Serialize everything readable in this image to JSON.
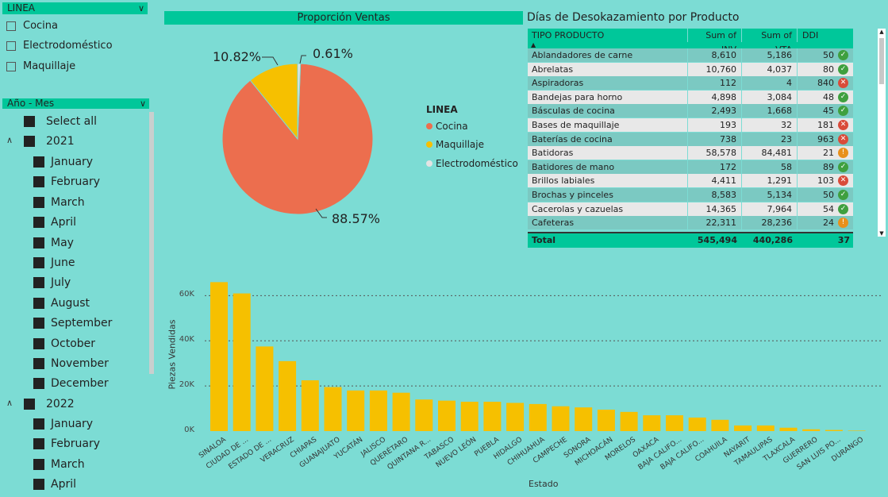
{
  "linea_slicer": {
    "title": "LINEA",
    "items": [
      "Cocina",
      "Electrodoméstico",
      "Maquillaje"
    ]
  },
  "date_slicer": {
    "title": "Año - Mes",
    "select_all": "Select all",
    "year_2021": "2021",
    "months_2021": [
      "January",
      "February",
      "March",
      "April",
      "May",
      "June",
      "July",
      "August",
      "September",
      "October",
      "November",
      "December"
    ],
    "year_2022": "2022",
    "months_2022": [
      "January",
      "February",
      "March",
      "April"
    ]
  },
  "pie": {
    "title": "Proporción Ventas",
    "label_cocina": "88.57%",
    "label_maquillaje": "10.82%",
    "label_electro": "0.61%",
    "legend_title": "LINEA",
    "legend": [
      "Cocina",
      "Maquillaje",
      "Electrodoméstico"
    ],
    "colors": {
      "cocina": "#ec6e4e",
      "maquillaje": "#f6c000",
      "electro": "#e3e3e3"
    },
    "values": [
      88.57,
      10.82,
      0.61
    ]
  },
  "table": {
    "title": "Días de Desokazamiento por Producto",
    "headers": [
      "TIPO PRODUCTO",
      "Sum of INV",
      "Sum of VTA",
      "DDI"
    ],
    "rows": [
      {
        "name": "Ablandadores de carne",
        "inv": "8,610",
        "vta": "5,186",
        "ddi": "50",
        "status": "ok"
      },
      {
        "name": "Abrelatas",
        "inv": "10,760",
        "vta": "4,037",
        "ddi": "80",
        "status": "ok"
      },
      {
        "name": "Aspiradoras",
        "inv": "112",
        "vta": "4",
        "ddi": "840",
        "status": "bad"
      },
      {
        "name": "Bandejas para horno",
        "inv": "4,898",
        "vta": "3,084",
        "ddi": "48",
        "status": "ok"
      },
      {
        "name": "Básculas de cocina",
        "inv": "2,493",
        "vta": "1,668",
        "ddi": "45",
        "status": "ok"
      },
      {
        "name": "Bases de maquillaje",
        "inv": "193",
        "vta": "32",
        "ddi": "181",
        "status": "bad"
      },
      {
        "name": "Baterías de cocina",
        "inv": "738",
        "vta": "23",
        "ddi": "963",
        "status": "bad"
      },
      {
        "name": "Batidoras",
        "inv": "58,578",
        "vta": "84,481",
        "ddi": "21",
        "status": "warn"
      },
      {
        "name": "Batidores de mano",
        "inv": "172",
        "vta": "58",
        "ddi": "89",
        "status": "ok"
      },
      {
        "name": "Brillos labiales",
        "inv": "4,411",
        "vta": "1,291",
        "ddi": "103",
        "status": "bad"
      },
      {
        "name": "Brochas y pinceles",
        "inv": "8,583",
        "vta": "5,134",
        "ddi": "50",
        "status": "ok"
      },
      {
        "name": "Cacerolas y cazuelas",
        "inv": "14,365",
        "vta": "7,964",
        "ddi": "54",
        "status": "ok"
      },
      {
        "name": "Cafeteras",
        "inv": "22,311",
        "vta": "28,236",
        "ddi": "24",
        "status": "warn"
      }
    ],
    "total": {
      "label": "Total",
      "inv": "545,494",
      "vta": "440,286",
      "ddi": "37"
    }
  },
  "chart_data": {
    "type": "bar",
    "ylabel": "Piezas Vendidas",
    "xlabel": "Estado",
    "ylim": [
      0,
      70000
    ],
    "yticks": [
      "0K",
      "20K",
      "40K",
      "60K"
    ],
    "color": "#f6c000",
    "categories": [
      "SINALOA",
      "CIUDAD DE ...",
      "ESTADO DE ...",
      "VERACRUZ",
      "CHIAPAS",
      "GUANAJUATO",
      "YUCATÁN",
      "JALISCO",
      "QUERÉTARO",
      "QUINTANA R...",
      "TABASCO",
      "NUEVO LEÓN",
      "PUEBLA",
      "HIDALGO",
      "CHIHUAHUA",
      "CAMPECHE",
      "SONORA",
      "MICHOACÁN",
      "MORELOS",
      "OAXACA",
      "BAJA CALIFO...",
      "BAJA CALIFO...",
      "COAHUILA",
      "NAYARIT",
      "TAMAULIPAS",
      "TLAXCALA",
      "GUERRERO",
      "SAN LUIS PO...",
      "DURANGO"
    ],
    "values": [
      66000,
      61000,
      37500,
      31000,
      22500,
      19500,
      18000,
      18000,
      17000,
      14000,
      13500,
      13000,
      13000,
      12500,
      12000,
      11000,
      10500,
      9500,
      8500,
      7000,
      7000,
      6000,
      5000,
      2500,
      2500,
      1500,
      800,
      500,
      200
    ]
  }
}
